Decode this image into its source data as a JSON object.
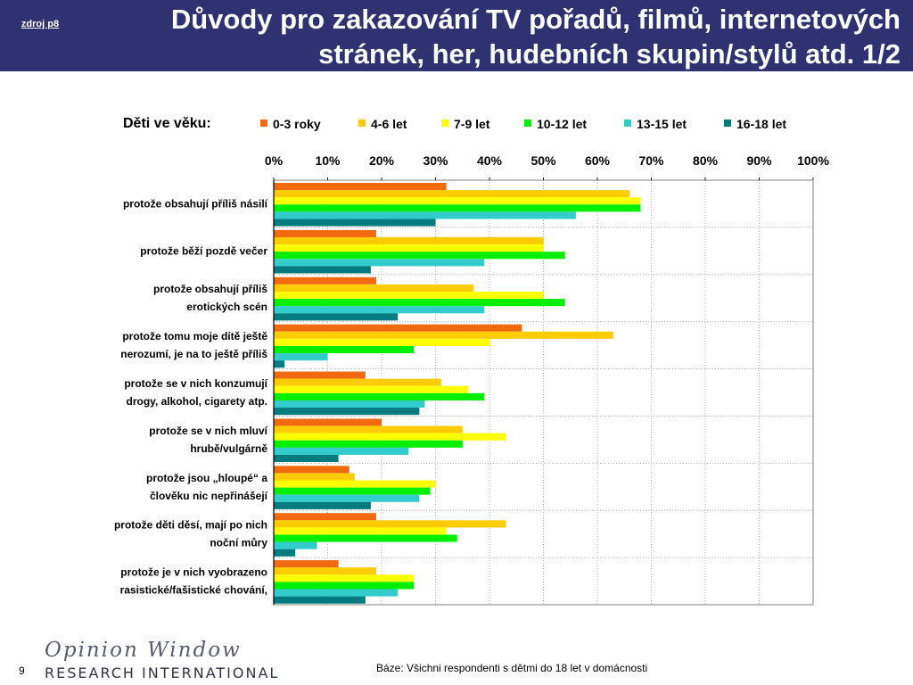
{
  "header": {
    "source_link": "zdroj p8",
    "title_line1": "Důvody pro zakazování TV pořadů, filmů, internetových",
    "title_line2": "stránek, her, hudebních skupin/stylů atd. 1/2"
  },
  "chart_data": {
    "type": "bar",
    "orientation": "horizontal",
    "legend_title": "Děti ve věku:",
    "legend_position": "top",
    "xaxis_position": "top",
    "xlim": [
      0,
      100
    ],
    "xticks": [
      "0%",
      "10%",
      "20%",
      "30%",
      "40%",
      "50%",
      "60%",
      "70%",
      "80%",
      "90%",
      "100%"
    ],
    "grid": true,
    "categories": [
      "protože obsahují příliš násilí",
      "protože běží pozdě večer",
      "protože obsahují příliš erotických scén",
      "protože tomu moje dítě ještě nerozumí, je na to ještě příliš",
      "protože se v nich konzumují drogy, alkohol, cigarety atp.",
      "protože se v nich mluví hrubě/vulgárně",
      "protože jsou „hloupé“ a člověku nic nepřinášejí",
      "protože děti děsí, mají po nich noční můry",
      "protože je v nich vyobrazeno rasistické/fašistické chování,"
    ],
    "category_lines": [
      [
        "protože obsahují příliš násilí"
      ],
      [
        "protože běží pozdě večer"
      ],
      [
        "protože obsahují příliš",
        "erotických scén"
      ],
      [
        "protože tomu moje dítě ještě",
        "nerozumí, je na to ještě příliš"
      ],
      [
        "protože se v nich konzumují",
        "drogy, alkohol, cigarety atp."
      ],
      [
        "protože se v nich mluví",
        "hrubě/vulgárně"
      ],
      [
        "protože jsou „hloupé“ a",
        "člověku nic nepřinášejí"
      ],
      [
        "protože děti děsí, mají po nich",
        "noční můry"
      ],
      [
        "protože je v nich vyobrazeno",
        "rasistické/fašistické chování,"
      ]
    ],
    "series": [
      {
        "name": "0-3 roky",
        "color": "#f26a10",
        "values": [
          32,
          19,
          19,
          46,
          17,
          20,
          14,
          19,
          12
        ]
      },
      {
        "name": "4-6 let",
        "color": "#ffcc00",
        "values": [
          66,
          50,
          37,
          63,
          31,
          35,
          15,
          43,
          19
        ]
      },
      {
        "name": "7-9 let",
        "color": "#ffff00",
        "values": [
          68,
          50,
          50,
          40,
          36,
          43,
          30,
          32,
          26
        ]
      },
      {
        "name": "10-12 let",
        "color": "#00ee00",
        "values": [
          68,
          54,
          54,
          26,
          39,
          35,
          29,
          34,
          26
        ]
      },
      {
        "name": "13-15 let",
        "color": "#33cccc",
        "values": [
          56,
          39,
          39,
          10,
          28,
          25,
          27,
          8,
          23
        ]
      },
      {
        "name": "16-18 let",
        "color": "#007b7f",
        "values": [
          30,
          18,
          23,
          2,
          27,
          12,
          18,
          4,
          17
        ]
      }
    ]
  },
  "footer": {
    "page_number": "9",
    "logo_script": "Opinion Window",
    "logo_brand": "RESEARCH INTERNATIONAL",
    "base_note": "Báze: Všichni respondenti s dětmi do 18 let v domácnosti"
  }
}
